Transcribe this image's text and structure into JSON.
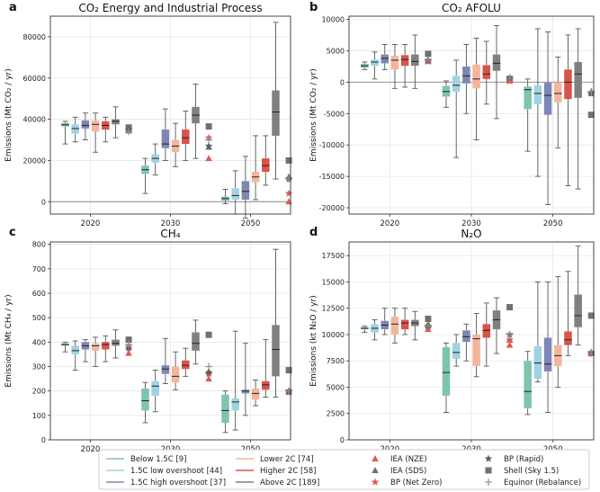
{
  "colors": {
    "below15": "#7ec4b0",
    "low_os": "#9fd3e3",
    "high_os": "#7e86b4",
    "lower2": "#f3b69c",
    "higher2": "#d9534a",
    "above2": "#808080",
    "iea": "#e05a57",
    "iea_sds": "#707070",
    "bp_netzero": "#e05a57",
    "bp_rapid": "#606060",
    "shell": "#707070",
    "equinor": "#909090"
  },
  "groups": [
    "2020",
    "2030",
    "2050"
  ],
  "legend": [
    {
      "label": "Below 1.5C [9]",
      "type": "line",
      "color": "below15"
    },
    {
      "label": "1.5C low overshoot [44]",
      "type": "line",
      "color": "low_os"
    },
    {
      "label": "1.5C high overshoot [37]",
      "type": "line",
      "color": "high_os"
    },
    {
      "label": "Lower 2C [74]",
      "type": "line",
      "color": "lower2"
    },
    {
      "label": "Higher 2C [58]",
      "type": "line",
      "color": "higher2"
    },
    {
      "label": "Above 2C [189]",
      "type": "line",
      "color": "above2"
    },
    {
      "label": "IEA (NZE)",
      "type": "triangle",
      "color": "iea"
    },
    {
      "label": "IEA (SDS)",
      "type": "triangle",
      "color": "iea_sds"
    },
    {
      "label": "BP (Net Zero)",
      "type": "star",
      "color": "bp_netzero"
    },
    {
      "label": "BP (Rapid)",
      "type": "star",
      "color": "bp_rapid"
    },
    {
      "label": "Shell (Sky 1.5)",
      "type": "square",
      "color": "shell"
    },
    {
      "label": "Equinor (Rebalance)",
      "type": "plus",
      "color": "equinor"
    }
  ],
  "chart_data": [
    {
      "panel": "a",
      "type": "box",
      "title": "CO₂ Energy and Industrial Process",
      "ylabel": "Emissions (Mt CO₂ / yr)",
      "ylim": [
        -6000,
        90000
      ],
      "yticks": [
        0,
        20000,
        40000,
        60000,
        80000
      ],
      "zero_line": true,
      "series": [
        {
          "year": "2020",
          "boxes": [
            [
              28000,
              36500,
              37300,
              38200,
              39000
            ],
            [
              29000,
              33000,
              35500,
              37500,
              41000
            ],
            [
              30000,
              35500,
              37000,
              39500,
              43000
            ],
            [
              24000,
              34000,
              37500,
              39500,
              43000
            ],
            [
              29000,
              35000,
              37000,
              39000,
              41000
            ],
            [
              31000,
              37500,
              39000,
              40000,
              46000
            ]
          ],
          "markers": {
            "iea_nze": 35000,
            "iea_sds": 34500,
            "bp_netzero": 34500,
            "bp_rapid": 35000,
            "shell": 36000,
            "equinor": 34000
          }
        },
        {
          "year": "2030",
          "boxes": [
            [
              4000,
              13500,
              15500,
              17500,
              21000
            ],
            [
              13000,
              19000,
              21000,
              23000,
              28000
            ],
            [
              20000,
              26000,
              28000,
              35000,
              45000
            ],
            [
              17000,
              24000,
              27000,
              30000,
              38000
            ],
            [
              20000,
              28000,
              31000,
              35000,
              44000
            ],
            [
              21000,
              38000,
              42000,
              46000,
              57000
            ]
          ],
          "markers": {
            "iea_nze": 21000,
            "iea_sds": 26500,
            "bp_netzero": 31000,
            "bp_rapid": 27000,
            "shell": 36500,
            "equinor": 30000
          }
        },
        {
          "year": "2050",
          "boxes": [
            [
              -1000,
              500,
              1500,
              2500,
              6000
            ],
            [
              -6000,
              1000,
              3000,
              6500,
              15000
            ],
            [
              -8000,
              1000,
              5000,
              10000,
              22000
            ],
            [
              1000,
              9500,
              12000,
              14500,
              32000
            ],
            [
              8000,
              14500,
              17500,
              21000,
              32000
            ],
            [
              11000,
              32000,
              43500,
              54000,
              87000
            ]
          ],
          "markers": {
            "iea_nze": 0,
            "iea_sds": 12000,
            "bp_netzero": 4000,
            "bp_rapid": 11000,
            "shell": 20000,
            "equinor": 11000
          }
        }
      ]
    },
    {
      "panel": "b",
      "type": "box",
      "title": "CO₂ AFOLU",
      "ylabel": "Emissions (Mt CO₂ / yr)",
      "ylim": [
        -21000,
        10500
      ],
      "yticks": [
        -20000,
        -15000,
        -10000,
        -5000,
        0,
        5000,
        10000
      ],
      "zero_line": true,
      "series": [
        {
          "year": "2020",
          "boxes": [
            [
              2000,
              2300,
              2600,
              2900,
              3200
            ],
            [
              500,
              2600,
              3200,
              3600,
              4800
            ],
            [
              2000,
              3000,
              3800,
              4400,
              6000
            ],
            [
              -1000,
              2000,
              3500,
              4200,
              6000
            ],
            [
              -800,
              2600,
              3600,
              4300,
              6000
            ],
            [
              -1000,
              2600,
              3300,
              4400,
              7500
            ]
          ],
          "markers": {
            "iea_nze": 3300,
            "iea_sds": 3500,
            "bp_netzero": 3300,
            "bp_rapid": 3500,
            "shell": 4500,
            "equinor": 3500
          }
        },
        {
          "year": "2030",
          "boxes": [
            [
              -4000,
              -2300,
              -1500,
              -600,
              200
            ],
            [
              -12000,
              -1500,
              -500,
              1000,
              3500
            ],
            [
              -5000,
              -200,
              1000,
              2500,
              6000
            ],
            [
              -9200,
              -1000,
              500,
              2800,
              7000
            ],
            [
              -3500,
              500,
              1300,
              2700,
              6500
            ],
            [
              -5800,
              1800,
              3000,
              4400,
              9000
            ]
          ],
          "markers": {
            "iea_nze": 200,
            "iea_sds": 600,
            "bp_netzero": 200,
            "bp_rapid": 700,
            "shell": 500,
            "equinor": 600
          }
        },
        {
          "year": "2050",
          "boxes": [
            [
              -11000,
              -4300,
              -1200,
              -700,
              500
            ],
            [
              -15000,
              -3500,
              -1800,
              -500,
              8500
            ],
            [
              -19500,
              -5200,
              -2100,
              -100,
              8000
            ],
            [
              -10500,
              -3200,
              -1800,
              0,
              4000
            ],
            [
              -16500,
              -2700,
              0,
              2000,
              7500
            ],
            [
              -17000,
              -2500,
              1300,
              3200,
              8500
            ]
          ],
          "markers": {
            "iea_nze": -1800,
            "iea_sds": -1500,
            "bp_netzero": -1700,
            "bp_rapid": -1800,
            "shell": -5200,
            "equinor": -1500
          }
        }
      ]
    },
    {
      "panel": "c",
      "type": "box",
      "title": "CH₄",
      "ylabel": "Emissions (Mt CH₄ / yr)",
      "ylim": [
        0,
        810
      ],
      "yticks": [
        0,
        100,
        200,
        300,
        400,
        500,
        600,
        700,
        800
      ],
      "zero_line": false,
      "series": [
        {
          "year": "2020",
          "boxes": [
            [
              360,
              385,
              390,
              395,
              400
            ],
            [
              285,
              350,
              365,
              385,
              405
            ],
            [
              320,
              370,
              385,
              400,
              410
            ],
            [
              300,
              365,
              385,
              395,
              420
            ],
            [
              320,
              370,
              390,
              400,
              425
            ],
            [
              335,
              385,
              395,
              410,
              450
            ]
          ],
          "markers": {
            "iea_nze": 355,
            "iea_sds": 380,
            "bp_netzero": 385,
            "bp_rapid": 375,
            "shell": 410,
            "equinor": 390
          }
        },
        {
          "year": "2030",
          "boxes": [
            [
              70,
              120,
              160,
              210,
              235
            ],
            [
              115,
              180,
              220,
              240,
              285
            ],
            [
              230,
              270,
              290,
              305,
              415
            ],
            [
              205,
              235,
              260,
              300,
              360
            ],
            [
              260,
              290,
              305,
              325,
              375
            ],
            [
              310,
              365,
              395,
              440,
              490
            ]
          ],
          "markers": {
            "iea_nze": 250,
            "iea_sds": 280,
            "bp_netzero": 270,
            "bp_rapid": 275,
            "shell": 430,
            "equinor": 300
          }
        },
        {
          "year": "2050",
          "boxes": [
            [
              30,
              70,
              120,
              185,
              200
            ],
            [
              40,
              120,
              155,
              170,
              445
            ],
            [
              100,
              190,
              200,
              205,
              395
            ],
            [
              140,
              165,
              190,
              210,
              245
            ],
            [
              175,
              205,
              225,
              240,
              410
            ],
            [
              175,
              260,
              370,
              470,
              780
            ]
          ],
          "markers": {
            "iea_nze": 195,
            "iea_sds": 200,
            "bp_netzero": 195,
            "bp_rapid": 200,
            "shell": 285,
            "equinor": 200
          }
        }
      ]
    },
    {
      "panel": "d",
      "type": "box",
      "title": "N₂O",
      "ylabel": "Emissions (kt N₂O / yr)",
      "ylim": [
        0,
        18800
      ],
      "yticks": [
        0,
        2500,
        5000,
        7500,
        10000,
        12500,
        15000,
        17500
      ],
      "zero_line": false,
      "series": [
        {
          "year": "2020",
          "boxes": [
            [
              10200,
              10500,
              10600,
              10700,
              10800
            ],
            [
              9500,
              10200,
              10600,
              11000,
              11400
            ],
            [
              10000,
              10500,
              10900,
              11300,
              12500
            ],
            [
              9200,
              10000,
              11000,
              11700,
              12500
            ],
            [
              10000,
              10500,
              11100,
              11400,
              12500
            ],
            [
              9500,
              10800,
              11100,
              11400,
              12200
            ]
          ],
          "markers": {
            "iea_nze": 10500,
            "iea_sds": 11000,
            "bp_netzero": 10600,
            "bp_rapid": 10800,
            "shell": 11500,
            "equinor": 10800
          }
        },
        {
          "year": "2030",
          "boxes": [
            [
              2600,
              4200,
              6400,
              8800,
              9200
            ],
            [
              7000,
              7700,
              8300,
              9200,
              10000
            ],
            [
              7500,
              9300,
              9800,
              10400,
              11000
            ],
            [
              6000,
              7000,
              9600,
              10000,
              12000
            ],
            [
              7000,
              9700,
              10400,
              11000,
              13000
            ],
            [
              8200,
              10500,
              11400,
              12300,
              13500
            ]
          ],
          "markers": {
            "iea_nze": 9000,
            "iea_sds": 9500,
            "bp_netzero": 9500,
            "bp_rapid": 10000,
            "shell": 12600,
            "equinor": 10000
          }
        },
        {
          "year": "2050",
          "boxes": [
            [
              2400,
              3000,
              4600,
              7500,
              8400
            ],
            [
              5500,
              5800,
              7300,
              8900,
              15000
            ],
            [
              2600,
              6500,
              7200,
              9700,
              15000
            ],
            [
              5000,
              7000,
              8000,
              9000,
              15500
            ],
            [
              8000,
              9000,
              9500,
              10300,
              16000
            ],
            [
              9000,
              10700,
              11800,
              13800,
              18400
            ]
          ],
          "markers": {
            "iea_nze": 8200,
            "iea_sds": 8300,
            "bp_netzero": 8200,
            "bp_rapid": 8300,
            "shell": 11800,
            "equinor": 8200
          }
        }
      ]
    }
  ]
}
